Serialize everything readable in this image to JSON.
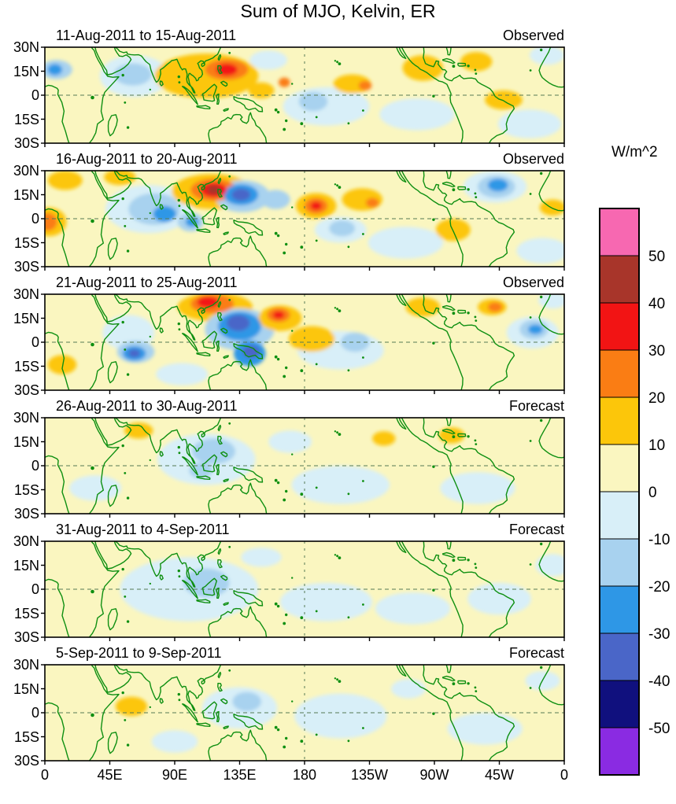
{
  "title": "Sum of MJO, Kelvin, ER",
  "colorbar": {
    "unit_label": "W/m^2",
    "tick_labels": [
      "50",
      "40",
      "30",
      "20",
      "10",
      "0",
      "-10",
      "-20",
      "-30",
      "-40",
      "-50"
    ],
    "colors_top_to_bottom": [
      "#F768B1",
      "#A8352A",
      "#F21414",
      "#FA7D14",
      "#FCC60A",
      "#FAF6C0",
      "#D8EFF8",
      "#A8D2EF",
      "#2E97E6",
      "#4A66C8",
      "#10107E",
      "#8A2BE2"
    ]
  },
  "axes": {
    "x_tick_labels": [
      "0",
      "45E",
      "90E",
      "135E",
      "180",
      "135W",
      "90W",
      "45W",
      "0"
    ],
    "y_tick_labels": [
      "30N",
      "15N",
      "0",
      "15S",
      "30S"
    ]
  },
  "chart_data": {
    "type": "heatmap",
    "subtype": "filled-contour longitude-latitude anomaly maps with green coastlines, dashed equator and dateline",
    "title": "Sum of MJO, Kelvin, ER",
    "unit": "W/m^2",
    "lon_range_deg_east": [
      0,
      360
    ],
    "lat_range_deg": [
      -30,
      30
    ],
    "contour_interval": 10,
    "levels": [
      -50,
      -40,
      -30,
      -20,
      -10,
      0,
      10,
      20,
      30,
      40,
      50
    ],
    "x_tick_lons": [
      0,
      45,
      90,
      135,
      180,
      225,
      270,
      315,
      360
    ],
    "y_tick_lats": [
      30,
      15,
      0,
      -15,
      -30
    ],
    "anomaly_format": "[lon_deg_east, lat_deg, rx_deg, ry_deg, peak_value_Wm2]",
    "panels": [
      {
        "title": "11-Aug-2011 to 15-Aug-2011",
        "tag": "Observed",
        "anomalies": [
          [
            8,
            16,
            11,
            6,
            -15
          ],
          [
            7,
            16,
            5,
            3.5,
            -25
          ],
          [
            62,
            12,
            24,
            13,
            -5
          ],
          [
            61,
            13,
            13,
            7,
            -15
          ],
          [
            155,
            22,
            13,
            6,
            -5
          ],
          [
            112,
            12,
            36,
            14,
            15
          ],
          [
            126,
            16,
            15,
            6.5,
            25
          ],
          [
            126,
            16,
            7.5,
            3.8,
            35
          ],
          [
            150,
            3,
            9,
            5,
            15
          ],
          [
            166,
            8,
            4,
            3,
            25
          ],
          [
            195,
            -7,
            30,
            12,
            -5
          ],
          [
            186,
            -4,
            10,
            6,
            -15
          ],
          [
            213,
            7,
            13,
            6,
            15
          ],
          [
            222,
            6,
            4.5,
            3,
            25
          ],
          [
            258,
            -12,
            26,
            10,
            -5
          ],
          [
            262,
            17,
            14,
            8,
            15
          ],
          [
            299,
            21,
            11,
            6,
            15
          ],
          [
            318,
            -3,
            13,
            6,
            15
          ],
          [
            336,
            -18,
            22,
            9,
            -5
          ],
          [
            348,
            25,
            12,
            6,
            -5
          ]
        ]
      },
      {
        "title": "16-Aug-2011 to 20-Aug-2011",
        "tag": "Observed",
        "anomalies": [
          [
            3,
            -2,
            12,
            9,
            15
          ],
          [
            2,
            -2,
            6.5,
            5.5,
            25
          ],
          [
            14,
            24,
            12,
            6,
            15
          ],
          [
            52,
            26,
            11,
            5,
            15
          ],
          [
            72,
            6,
            30,
            15,
            -5
          ],
          [
            76,
            6,
            18,
            10,
            -15
          ],
          [
            83,
            3,
            8,
            5,
            -25
          ],
          [
            101,
            -2,
            9,
            6,
            -15
          ],
          [
            102,
            -2,
            4.5,
            3,
            -25
          ],
          [
            116,
            17,
            28,
            11,
            15
          ],
          [
            117,
            18,
            16,
            7,
            25
          ],
          [
            117,
            18,
            9,
            4.5,
            35
          ],
          [
            117,
            18,
            4.5,
            2.8,
            45
          ],
          [
            137,
            14,
            19,
            10,
            -15
          ],
          [
            136,
            15,
            12,
            6.5,
            -25
          ],
          [
            136,
            15,
            6.5,
            3.8,
            -35
          ],
          [
            160,
            12,
            10,
            6,
            -15
          ],
          [
            188,
            8,
            14,
            8,
            15
          ],
          [
            188,
            8,
            8,
            5,
            25
          ],
          [
            188,
            8,
            4,
            2.6,
            35
          ],
          [
            205,
            -7,
            18,
            8,
            -5
          ],
          [
            206,
            -6,
            9,
            5,
            -15
          ],
          [
            220,
            12,
            14,
            7,
            15
          ],
          [
            227,
            10,
            4.5,
            3,
            25
          ],
          [
            250,
            -15,
            26,
            10,
            -5
          ],
          [
            283,
            -7,
            12,
            7,
            15
          ],
          [
            312,
            20,
            22,
            10,
            -5
          ],
          [
            313,
            20,
            13,
            7,
            -15
          ],
          [
            314,
            21,
            7,
            4,
            -25
          ],
          [
            352,
            7,
            9,
            5,
            15
          ],
          [
            345,
            -20,
            18,
            8,
            -5
          ]
        ]
      },
      {
        "title": "21-Aug-2011 to 25-Aug-2011",
        "tag": "Observed",
        "anomalies": [
          [
            95,
            -20,
            18,
            7,
            -5
          ],
          [
            58,
            6,
            18,
            11,
            -5
          ],
          [
            63,
            -6,
            13,
            7,
            -15
          ],
          [
            62,
            -7,
            8,
            4.5,
            -25
          ],
          [
            62,
            -7,
            4,
            2.5,
            -35
          ],
          [
            118,
            22,
            26,
            9,
            15
          ],
          [
            116,
            24,
            15,
            6,
            25
          ],
          [
            113,
            25,
            7.5,
            3.5,
            35
          ],
          [
            135,
            8,
            24,
            13,
            -15
          ],
          [
            135,
            10,
            15,
            9,
            -25
          ],
          [
            134,
            12,
            8,
            5,
            -35
          ],
          [
            142,
            -7,
            11,
            8,
            -25
          ],
          [
            143,
            -6,
            6,
            4,
            -35
          ],
          [
            163,
            15,
            15,
            8,
            15
          ],
          [
            162,
            17,
            8,
            4.5,
            25
          ],
          [
            162,
            17,
            4,
            2.4,
            35
          ],
          [
            185,
            2,
            16,
            8,
            15
          ],
          [
            205,
            -5,
            30,
            12,
            -5
          ],
          [
            215,
            0,
            10,
            6,
            -15
          ],
          [
            262,
            22,
            12,
            6,
            15
          ],
          [
            310,
            22,
            10,
            5,
            15
          ],
          [
            312,
            22,
            5,
            3,
            25
          ],
          [
            338,
            6,
            18,
            10,
            -5
          ],
          [
            339,
            8,
            10,
            6,
            -15
          ],
          [
            340,
            8,
            5,
            3,
            -25
          ],
          [
            352,
            26,
            10,
            5,
            -5
          ],
          [
            12,
            -14,
            10,
            6,
            15
          ]
        ]
      },
      {
        "title": "26-Aug-2011 to 30-Aug-2011",
        "tag": "Forecast",
        "anomalies": [
          [
            35,
            -14,
            18,
            8,
            -5
          ],
          [
            65,
            22,
            10,
            5,
            15
          ],
          [
            112,
            4,
            34,
            16,
            -5
          ],
          [
            117,
            9,
            15,
            8,
            -15
          ],
          [
            108,
            -3,
            8,
            5,
            -15
          ],
          [
            170,
            15,
            15,
            7,
            -5
          ],
          [
            205,
            -12,
            34,
            12,
            -5
          ],
          [
            235,
            17,
            8,
            4.5,
            15
          ],
          [
            282,
            19,
            9,
            5,
            15
          ],
          [
            300,
            -14,
            26,
            10,
            -5
          ]
        ]
      },
      {
        "title": "31-Aug-2011 to 4-Sep-2011",
        "tag": "Forecast",
        "anomalies": [
          [
            100,
            0,
            48,
            20,
            -5
          ],
          [
            112,
            4,
            16,
            9,
            -15
          ],
          [
            150,
            20,
            14,
            6,
            -5
          ],
          [
            195,
            -8,
            32,
            12,
            -5
          ],
          [
            255,
            -12,
            26,
            10,
            -5
          ],
          [
            315,
            -6,
            22,
            10,
            -5
          ],
          [
            352,
            15,
            12,
            7,
            -5
          ]
        ]
      },
      {
        "title": "5-Sep-2011 to 9-Sep-2011",
        "tag": "Forecast",
        "anomalies": [
          [
            60,
            4,
            11,
            6,
            15
          ],
          [
            90,
            -18,
            16,
            7,
            -5
          ],
          [
            135,
            3,
            26,
            13,
            -5
          ],
          [
            140,
            7,
            10,
            6,
            -15
          ],
          [
            205,
            -2,
            32,
            14,
            -5
          ],
          [
            252,
            15,
            12,
            6,
            -5
          ],
          [
            305,
            -10,
            26,
            10,
            -5
          ],
          [
            345,
            20,
            12,
            6,
            -5
          ]
        ]
      }
    ]
  }
}
